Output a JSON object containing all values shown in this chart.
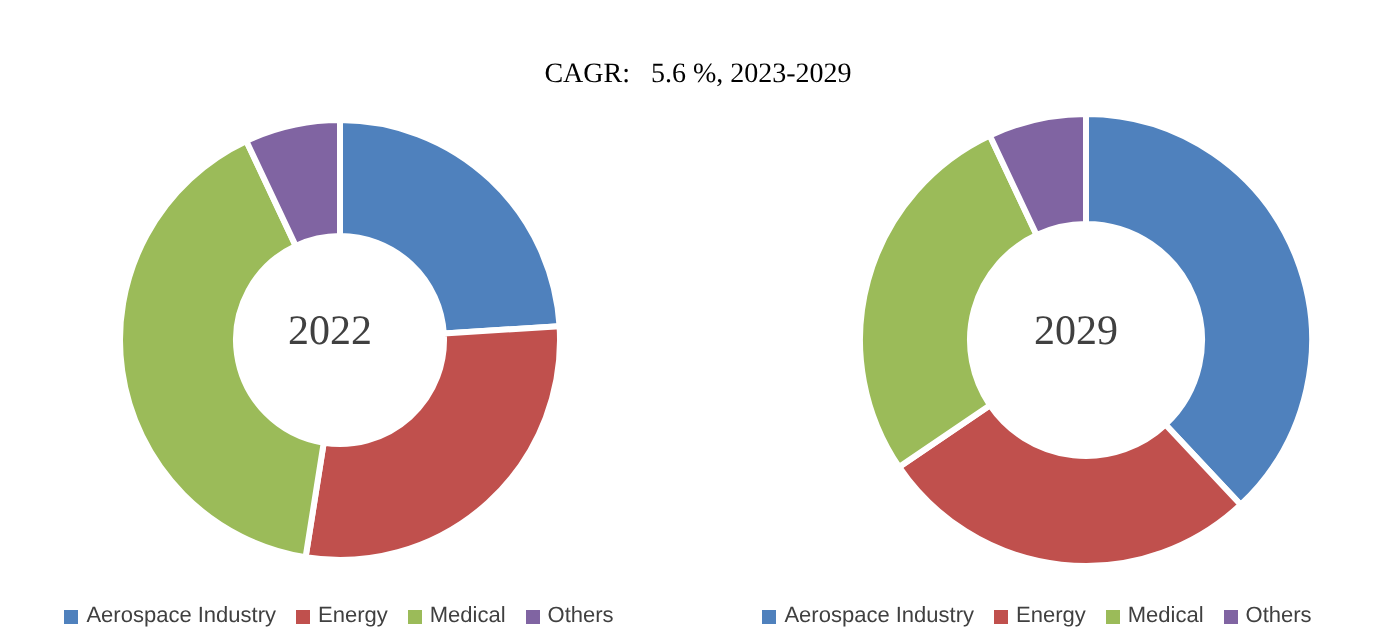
{
  "chart_data": [
    {
      "type": "donut",
      "title": "2022",
      "annotations": [
        "CAGR:   5.6 %, 2023-2029"
      ],
      "categories": [
        "Aerospace Industry",
        "Energy",
        "Medical",
        "Others"
      ],
      "values": [
        24,
        28.5,
        40.5,
        7
      ],
      "colors": [
        "#4f81bd",
        "#c0504d",
        "#9bbb59",
        "#8064a2"
      ],
      "legend": "bottom"
    },
    {
      "type": "donut",
      "title": "2029",
      "categories": [
        "Aerospace Industry",
        "Energy",
        "Medical",
        "Others"
      ],
      "values": [
        38,
        27.5,
        27.5,
        7
      ],
      "colors": [
        "#4f81bd",
        "#c0504d",
        "#9bbb59",
        "#8064a2"
      ],
      "legend": "bottom"
    }
  ]
}
